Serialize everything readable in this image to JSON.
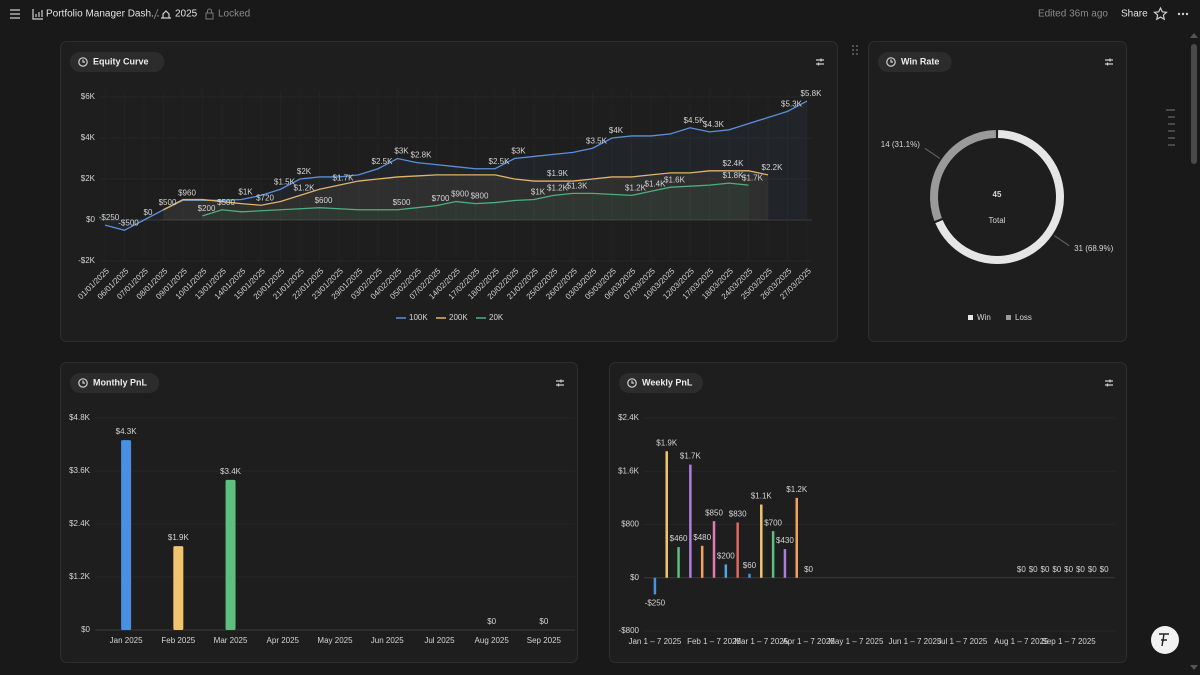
{
  "header": {
    "title": "Portfolio Manager Dash...",
    "page": "2025",
    "lock_status": "Locked",
    "edited": "Edited 36m ago",
    "share": "Share"
  },
  "chart_data": [
    {
      "type": "line",
      "title": "Equity Curve",
      "categories": [
        "01/01/2025",
        "06/01/2025",
        "07/01/2025",
        "08/01/2025",
        "09/01/2025",
        "10/01/2025",
        "13/01/2025",
        "14/01/2025",
        "15/01/2025",
        "20/01/2025",
        "21/01/2025",
        "22/01/2025",
        "23/01/2025",
        "29/01/2025",
        "03/02/2025",
        "04/02/2025",
        "05/02/2025",
        "07/02/2025",
        "14/02/2025",
        "17/02/2025",
        "18/02/2025",
        "20/02/2025",
        "21/02/2025",
        "25/02/2025",
        "26/02/2025",
        "03/03/2025",
        "05/03/2025",
        "06/03/2025",
        "07/03/2025",
        "10/03/2025",
        "12/03/2025",
        "17/03/2025",
        "18/03/2025",
        "24/03/2025",
        "25/03/2025",
        "26/03/2025",
        "27/03/2025"
      ],
      "series": [
        {
          "name": "100K",
          "color": "#5b8fd9",
          "values": [
            -250,
            -500,
            0,
            500,
            960,
            960,
            960,
            1000,
            1200,
            1500,
            2000,
            2100,
            2100,
            2200,
            2500,
            3000,
            2800,
            2700,
            2600,
            2500,
            2500,
            3000,
            3100,
            3200,
            3300,
            3500,
            4000,
            4100,
            4100,
            4200,
            4500,
            4300,
            4400,
            4700,
            5000,
            5300,
            5800
          ],
          "value_labels": [
            "-$250",
            "-$500",
            "$0",
            "$500",
            "$960",
            null,
            null,
            "$1K",
            null,
            "$1.5K",
            "$2K",
            null,
            null,
            null,
            "$2.5K",
            "$3K",
            "$2.8K",
            null,
            null,
            null,
            "$2.5K",
            "$3K",
            null,
            null,
            null,
            "$3.5K",
            "$4K",
            null,
            null,
            null,
            "$4.5K",
            "$4.3K",
            null,
            null,
            null,
            "$5.3K",
            "$5.8K"
          ]
        },
        {
          "name": "200K",
          "color": "#e0b46a",
          "values": [
            null,
            null,
            null,
            500,
            1000,
            1000,
            900,
            800,
            720,
            900,
            1200,
            1500,
            1700,
            1900,
            2000,
            2100,
            2150,
            2200,
            2200,
            2200,
            2200,
            2000,
            1900,
            1900,
            1900,
            2000,
            2100,
            2100,
            2200,
            2300,
            2300,
            2400,
            2400,
            2400,
            2200,
            null,
            null
          ],
          "value_labels": [
            null,
            null,
            null,
            null,
            null,
            null,
            null,
            null,
            "$720",
            null,
            "$1.2K",
            null,
            "$1.7K",
            null,
            null,
            null,
            null,
            null,
            null,
            null,
            null,
            null,
            null,
            "$1.9K",
            null,
            null,
            null,
            null,
            null,
            null,
            null,
            null,
            "$2.4K",
            null,
            "$2.2K",
            null,
            null
          ]
        },
        {
          "name": "20K",
          "color": "#4fae7d",
          "values": [
            null,
            null,
            null,
            null,
            null,
            200,
            500,
            400,
            450,
            500,
            550,
            600,
            550,
            500,
            500,
            500,
            600,
            700,
            900,
            800,
            850,
            950,
            1000,
            1200,
            1300,
            1300,
            1250,
            1200,
            1400,
            1600,
            1650,
            1700,
            1800,
            1700,
            null,
            null,
            null
          ],
          "value_labels": [
            null,
            null,
            null,
            null,
            null,
            "$200",
            "$500",
            null,
            null,
            null,
            null,
            "$600",
            null,
            null,
            null,
            "$500",
            null,
            "$700",
            "$900",
            "$800",
            null,
            null,
            "$1K",
            "$1.2K",
            "$1.3K",
            null,
            null,
            "$1.2K",
            "$1.4K",
            "$1.6K",
            null,
            null,
            "$1.8K",
            "$1.7K",
            null,
            null,
            null
          ]
        }
      ],
      "ylim": [
        -2000,
        6000
      ],
      "yticks": [
        {
          "value": -2000,
          "label": "-$2K"
        },
        {
          "value": 0,
          "label": "$0"
        },
        {
          "value": 2000,
          "label": "$2K"
        },
        {
          "value": 4000,
          "label": "$4K"
        },
        {
          "value": 6000,
          "label": "$6K"
        }
      ],
      "grid": true,
      "legend": "bottom"
    },
    {
      "type": "donut",
      "title": "Win Rate",
      "categories": [
        "Win",
        "Loss"
      ],
      "values": [
        31,
        14
      ],
      "value_labels": [
        "31 (68.9%)",
        "14 (31.1%)"
      ],
      "colors": [
        "#e6e6e6",
        "#9a9a9a"
      ],
      "total": 45,
      "total_label": "Total",
      "legend": "bottom"
    },
    {
      "type": "bar",
      "title": "Monthly PnL",
      "categories": [
        "Jan 2025",
        "Feb 2025",
        "Mar 2025",
        "Apr 2025",
        "May 2025",
        "Jun 2025",
        "Jul 2025",
        "Aug 2025",
        "Sep 2025"
      ],
      "values": [
        4300,
        1900,
        3400,
        null,
        null,
        null,
        null,
        0,
        0
      ],
      "value_labels": [
        "$4.3K",
        "$1.9K",
        "$3.4K",
        null,
        null,
        null,
        null,
        "$0",
        "$0"
      ],
      "colors": [
        "#4a90e2",
        "#f2c46d",
        "#5fbf7f",
        null,
        null,
        null,
        null,
        "#9b7bd4",
        "#e07a5f"
      ],
      "ylim": [
        0,
        4800
      ],
      "yticks": [
        {
          "value": 0,
          "label": "$0"
        },
        {
          "value": 1200,
          "label": "$1.2K"
        },
        {
          "value": 2400,
          "label": "$2.4K"
        },
        {
          "value": 3600,
          "label": "$3.6K"
        },
        {
          "value": 4800,
          "label": "$4.8K"
        }
      ],
      "grid": true
    },
    {
      "type": "bar",
      "title": "Weekly PnL",
      "categories": [
        "Jan 1 – 7 2025",
        null,
        null,
        null,
        null,
        "Feb 1 – 7 2025",
        null,
        null,
        null,
        "Mar 1 – 7 2025",
        null,
        null,
        null,
        "Apr 1 – 7 2025",
        null,
        null,
        null,
        "May 1 – 7 2025",
        null,
        null,
        null,
        null,
        "Jun 1 – 7 2025",
        null,
        null,
        null,
        "Jul 1 – 7 2025",
        null,
        null,
        null,
        null,
        "Aug 1 – 7 2025",
        null,
        null,
        null,
        "Sep 1 – 7 2025",
        null,
        null,
        null
      ],
      "values": [
        -250,
        1900,
        460,
        1700,
        480,
        850,
        200,
        830,
        60,
        1100,
        700,
        430,
        1200,
        0,
        null,
        null,
        null,
        null,
        null,
        null,
        null,
        null,
        null,
        null,
        null,
        null,
        null,
        null,
        null,
        null,
        null,
        0,
        0,
        0,
        0,
        0,
        0,
        0,
        0
      ],
      "value_labels": [
        "-$250",
        "$1.9K",
        "$460",
        "$1.7K",
        "$480",
        "$850",
        "$200",
        "$830",
        "$60",
        "$1.1K",
        "$700",
        "$430",
        "$1.2K",
        "$0",
        null,
        null,
        null,
        null,
        null,
        null,
        null,
        null,
        null,
        null,
        null,
        null,
        null,
        null,
        null,
        null,
        null,
        "$0",
        "$0",
        "$0",
        "$0",
        "$0",
        "$0",
        "$0",
        "$0"
      ],
      "colors": [
        "#4a90e2",
        "#f2c46d",
        "#5fbf7f",
        "#b07fd8",
        "#f0a35e",
        "#e27bb0",
        "#4aa8e2",
        "#e0675f",
        "#4a90e2",
        "#f2c46d",
        "#5fbf7f",
        "#b07fd8",
        "#f0a35e",
        "#e27bb0",
        null,
        null,
        null,
        null,
        null,
        null,
        null,
        null,
        null,
        null,
        null,
        null,
        null,
        null,
        null,
        null,
        null,
        "#4a90e2",
        "#4a90e2",
        "#4a90e2",
        "#4a90e2",
        "#4a90e2",
        "#4a90e2",
        "#4a90e2",
        "#4a90e2"
      ],
      "ylim": [
        -800,
        2400
      ],
      "yticks": [
        {
          "value": -800,
          "label": "-$800"
        },
        {
          "value": 0,
          "label": "$0"
        },
        {
          "value": 800,
          "label": "$800"
        },
        {
          "value": 1600,
          "label": "$1.6K"
        },
        {
          "value": 2400,
          "label": "$2.4K"
        }
      ],
      "grid": true
    }
  ]
}
